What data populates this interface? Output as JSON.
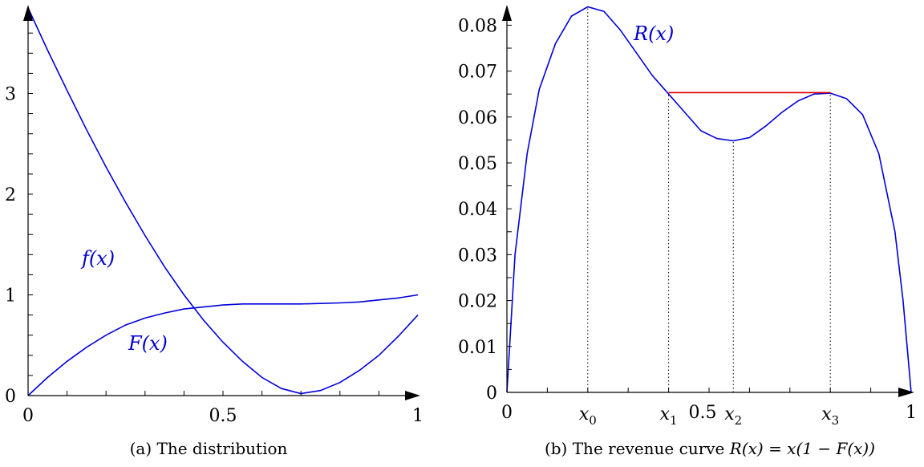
{
  "chart_data": [
    {
      "type": "line",
      "caption": "(a) The distribution",
      "xlim": [
        0,
        1
      ],
      "ylim": [
        0,
        3.9
      ],
      "x_tick_labels": [
        "0",
        "0.5",
        "1"
      ],
      "y_tick_labels": [
        "0",
        "1",
        "2",
        "3"
      ],
      "series": [
        {
          "name": "f(x)",
          "color": "#0000dd",
          "x": [
            0,
            0.05,
            0.1,
            0.15,
            0.2,
            0.25,
            0.3,
            0.35,
            0.4,
            0.45,
            0.5,
            0.55,
            0.6,
            0.65,
            0.7,
            0.75,
            0.8,
            0.85,
            0.9,
            0.95,
            1
          ],
          "values": [
            3.85,
            3.43,
            3.03,
            2.64,
            2.27,
            1.92,
            1.59,
            1.28,
            1.0,
            0.75,
            0.53,
            0.34,
            0.18,
            0.07,
            0.02,
            0.05,
            0.13,
            0.25,
            0.4,
            0.59,
            0.8
          ]
        },
        {
          "name": "F(x)",
          "color": "#0000dd",
          "x": [
            0,
            0.05,
            0.1,
            0.15,
            0.2,
            0.25,
            0.3,
            0.35,
            0.4,
            0.45,
            0.5,
            0.55,
            0.6,
            0.65,
            0.7,
            0.75,
            0.8,
            0.85,
            0.9,
            0.95,
            1
          ],
          "values": [
            0,
            0.18,
            0.34,
            0.48,
            0.6,
            0.7,
            0.77,
            0.82,
            0.86,
            0.88,
            0.9,
            0.91,
            0.91,
            0.91,
            0.91,
            0.915,
            0.92,
            0.93,
            0.95,
            0.97,
            1.0
          ]
        }
      ]
    },
    {
      "type": "line",
      "caption": "(b) The revenue curve R(x) = x(1 − F(x))",
      "xlim": [
        0,
        1
      ],
      "ylim": [
        0,
        0.085
      ],
      "x_tick_labels": [
        "0",
        "0.5",
        "1"
      ],
      "y_tick_labels": [
        "0",
        "0.01",
        "0.02",
        "0.03",
        "0.04",
        "0.05",
        "0.06",
        "0.07",
        "0.08"
      ],
      "series": [
        {
          "name": "R(x)",
          "color": "#0000dd",
          "x": [
            0,
            0.02,
            0.05,
            0.08,
            0.12,
            0.16,
            0.2,
            0.24,
            0.28,
            0.32,
            0.36,
            0.4,
            0.44,
            0.48,
            0.52,
            0.56,
            0.6,
            0.64,
            0.68,
            0.72,
            0.76,
            0.8,
            0.84,
            0.88,
            0.92,
            0.96,
            0.98,
            1
          ],
          "values": [
            0,
            0.03,
            0.052,
            0.066,
            0.076,
            0.082,
            0.084,
            0.083,
            0.079,
            0.074,
            0.069,
            0.065,
            0.061,
            0.057,
            0.0553,
            0.0548,
            0.0555,
            0.058,
            0.061,
            0.0635,
            0.065,
            0.0652,
            0.064,
            0.0605,
            0.052,
            0.035,
            0.02,
            0
          ]
        }
      ],
      "flat_segment": {
        "color": "#e00000",
        "x": [
          0.4,
          0.8
        ],
        "y": 0.0653
      },
      "marked_points": [
        {
          "label": "x",
          "sub": "0",
          "x": 0.2,
          "y": 0.084
        },
        {
          "label": "x",
          "sub": "1",
          "x": 0.4,
          "y": 0.0653
        },
        {
          "label": "x",
          "sub": "2",
          "x": 0.56,
          "y": 0.0548
        },
        {
          "label": "x",
          "sub": "3",
          "x": 0.8,
          "y": 0.0653
        }
      ]
    }
  ],
  "labels": {
    "f_label": "f(x)",
    "F_label": "F(x)",
    "R_label": "R(x)",
    "caption_a": "(a) The distribution",
    "caption_b_prefix": "(b) The revenue curve ",
    "caption_b_formula": "R(x) = x(1 − F(x))"
  }
}
